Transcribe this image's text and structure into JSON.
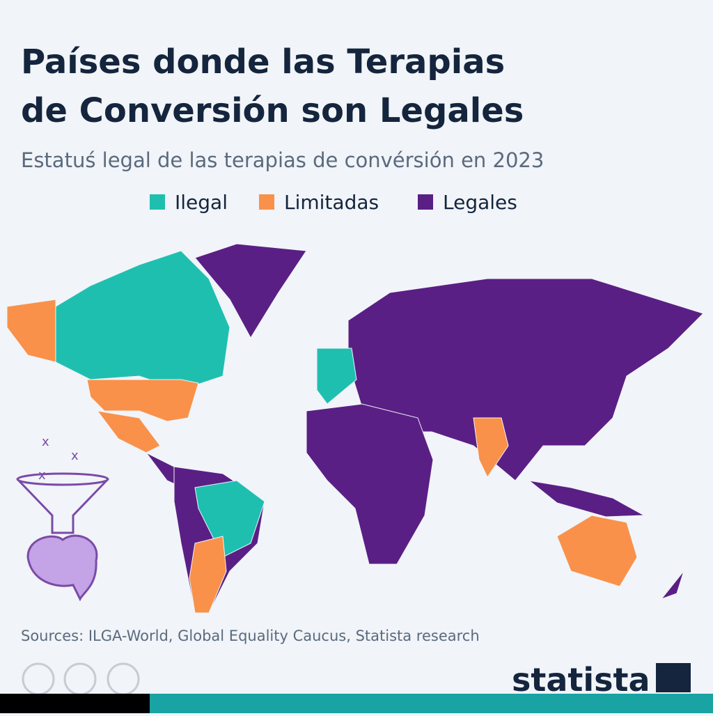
{
  "header": {
    "title_lines": [
      "Países donde las Terapias",
      "de Conversión son Legales"
    ],
    "subtitle": "Estatuś legal de las terapias de convérsión en 2023"
  },
  "legend": {
    "items": [
      {
        "label": "Ilegal",
        "color": "#1fbfb0"
      },
      {
        "label": "Limitadas",
        "color": "#f9914a"
      },
      {
        "label": "Legales",
        "color": "#5a1f85"
      }
    ]
  },
  "footer": {
    "source": "Sources: ILGA-World, Global Equality Caucus, Statista research",
    "brand": "statista"
  }
}
